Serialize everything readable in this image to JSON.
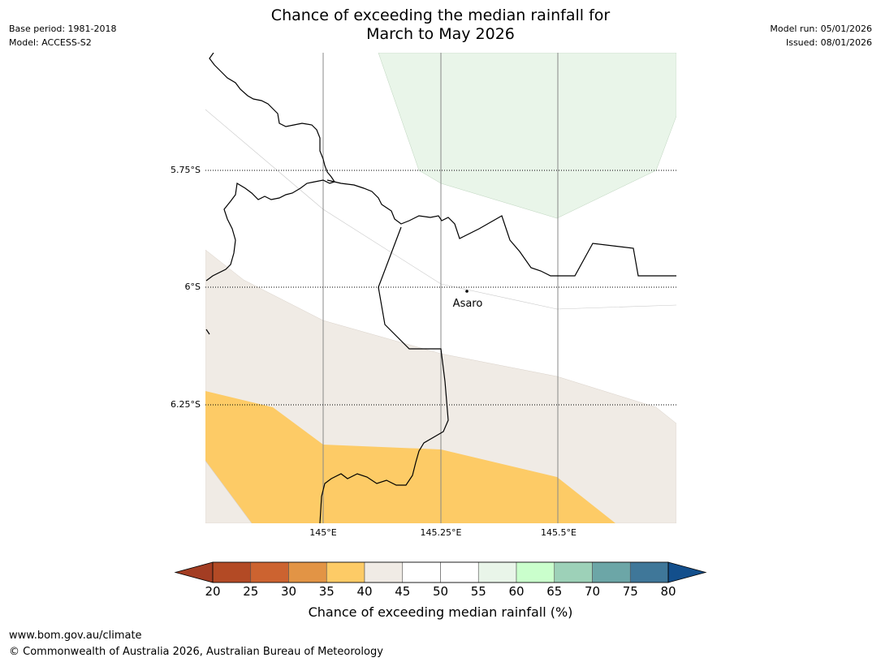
{
  "title_line1": "Chance of exceeding the median rainfall for",
  "title_line2": "March to May 2026",
  "meta_left": {
    "base_period": "Base period: 1981-2018",
    "model": "Model: ACCESS-S2"
  },
  "meta_right": {
    "model_run": "Model run: 05/01/2026",
    "issued": "Issued: 08/01/2026"
  },
  "map": {
    "lat_labels": [
      "5.75°S",
      "6°S",
      "6.25°S"
    ],
    "lon_labels": [
      "145°E",
      "145.25°E",
      "145.5°E"
    ],
    "town": "Asaro"
  },
  "colorbar": {
    "title": "Chance of exceeding median rainfall (%)",
    "ticks": [
      "20",
      "25",
      "30",
      "35",
      "40",
      "45",
      "50",
      "55",
      "60",
      "65",
      "70",
      "75",
      "80"
    ],
    "colors": [
      "#a33d23",
      "#b34a25",
      "#cc6330",
      "#e29445",
      "#fdcb66",
      "#f0ebe5",
      "#ffffff",
      "#ffffff",
      "#e9f5e9",
      "#caffcc",
      "#9dd1b8",
      "#6ca6a7",
      "#3f7799",
      "#134f8c"
    ]
  },
  "footer": {
    "url": "www.bom.gov.au/climate",
    "copyright": "© Commonwealth of Australia 2026, Australian Bureau of Meteorology"
  }
}
